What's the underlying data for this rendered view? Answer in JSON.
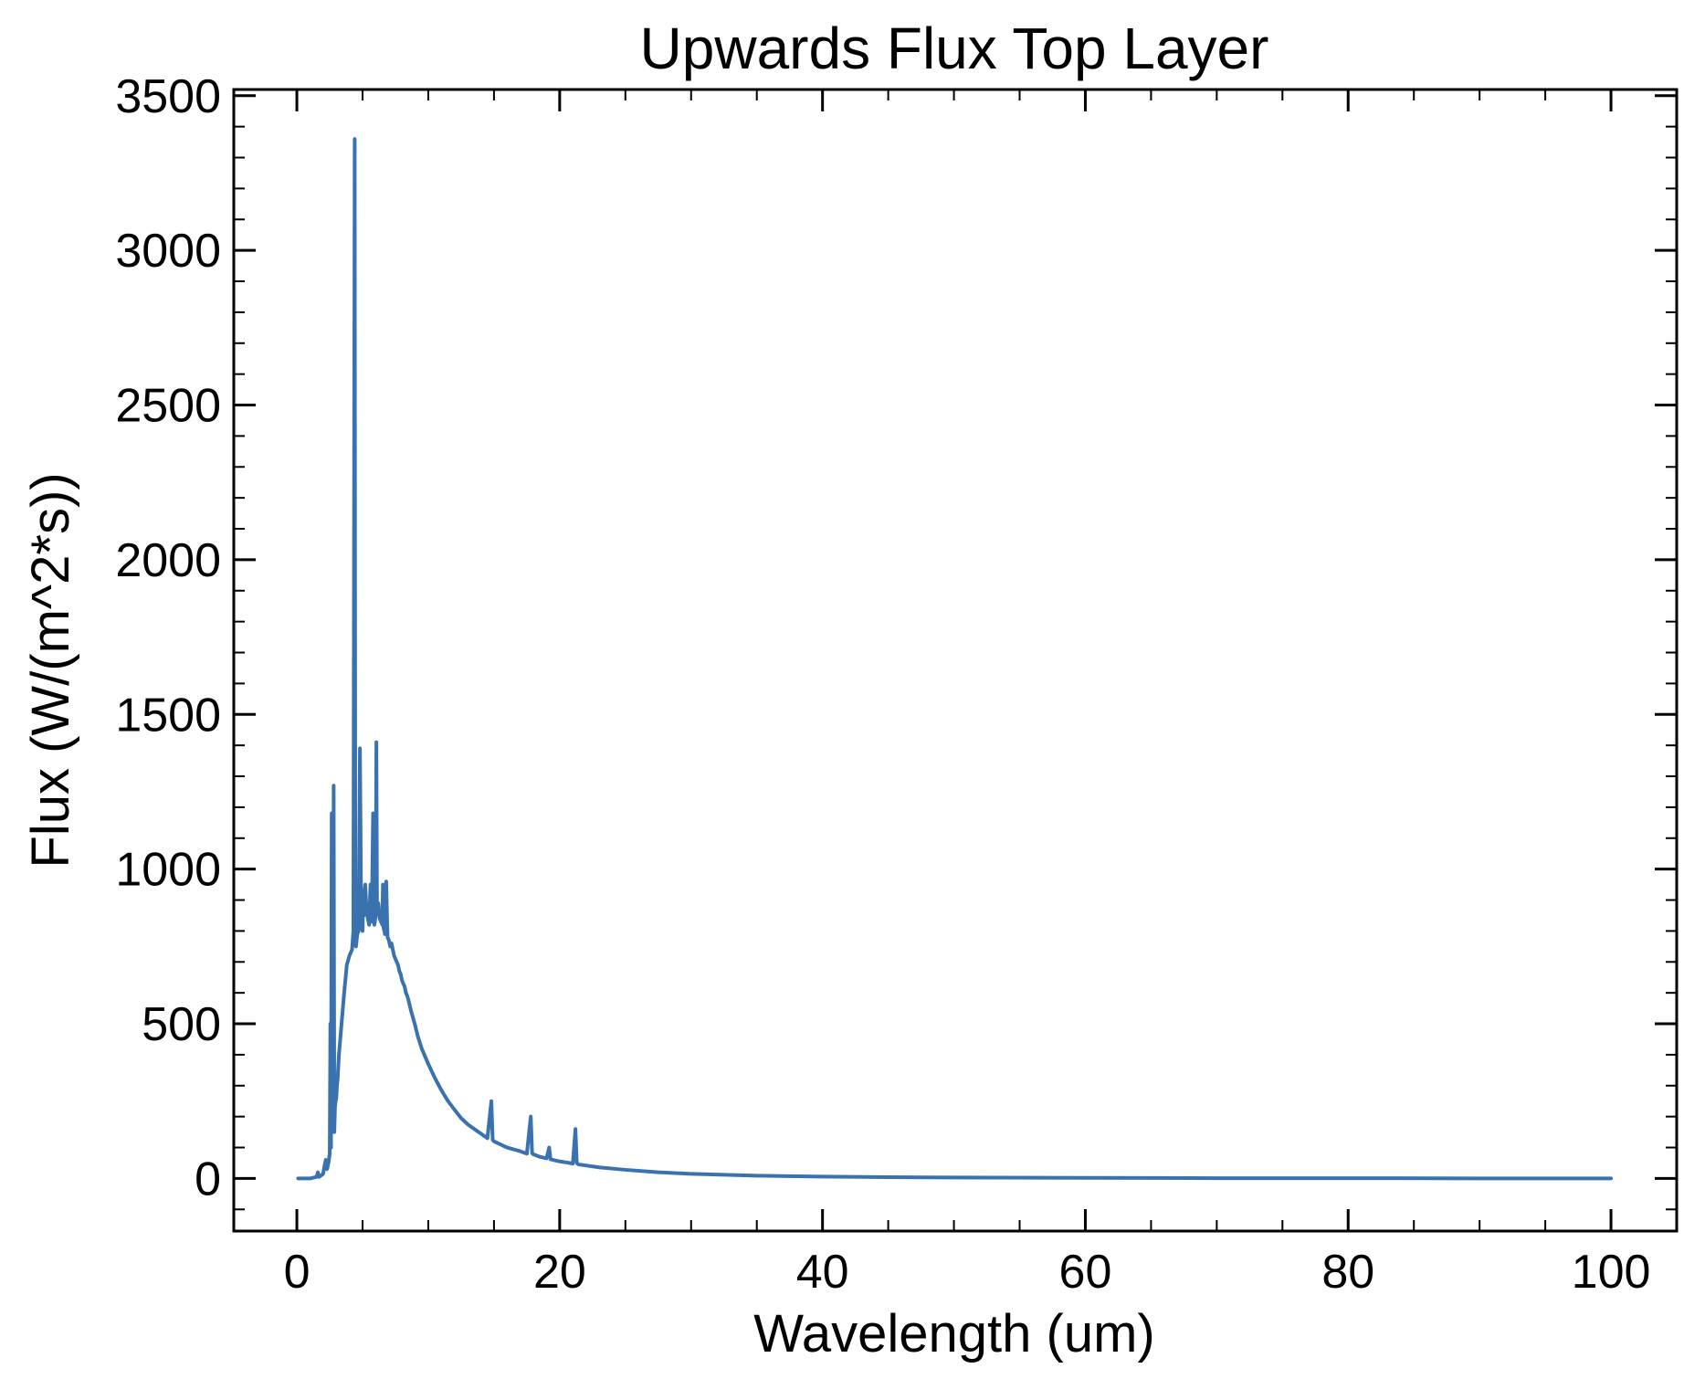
{
  "chart_data": {
    "type": "line",
    "title": "Upwards Flux Top Layer",
    "xlabel": "Wavelength (um)",
    "ylabel": "Flux (W/(m^2*s))",
    "xlim": [
      -4.8,
      105
    ],
    "ylim": [
      -170,
      3520
    ],
    "x_major_ticks": [
      0,
      20,
      40,
      60,
      80,
      100
    ],
    "x_tick_labels": [
      "0",
      "20",
      "40",
      "60",
      "80",
      "100"
    ],
    "x_minor_step": 5,
    "y_major_ticks": [
      0,
      500,
      1000,
      1500,
      2000,
      2500,
      3000,
      3500
    ],
    "y_tick_labels": [
      "0",
      "500",
      "1000",
      "1500",
      "2000",
      "2500",
      "3000",
      "3500"
    ],
    "y_minor_step": 100,
    "grid": false,
    "series": [
      {
        "name": "Upwards Flux",
        "color": "#3a72b0",
        "x": [
          0.1,
          1.0,
          1.5,
          1.6,
          1.7,
          2.0,
          2.1,
          2.2,
          2.3,
          2.4,
          2.5,
          2.55,
          2.6,
          2.65,
          2.7,
          2.75,
          2.8,
          2.85,
          2.9,
          2.95,
          3.0,
          3.05,
          3.1,
          3.2,
          3.4,
          3.6,
          3.8,
          4.0,
          4.2,
          4.3,
          4.4,
          4.45,
          4.5,
          4.55,
          4.6,
          4.7,
          4.8,
          4.9,
          5.0,
          5.05,
          5.1,
          5.15,
          5.2,
          5.3,
          5.4,
          5.5,
          5.6,
          5.7,
          5.8,
          5.9,
          6.0,
          6.05,
          6.1,
          6.2,
          6.3,
          6.4,
          6.5,
          6.55,
          6.6,
          6.7,
          6.8,
          6.9,
          7.0,
          7.1,
          7.2,
          7.3,
          7.4,
          7.5,
          7.6,
          7.7,
          7.8,
          7.9,
          8.0,
          8.1,
          8.2,
          8.3,
          8.4,
          8.5,
          8.7,
          8.9,
          9.0,
          9.2,
          9.5,
          10.0,
          10.5,
          11.0,
          11.5,
          12.0,
          12.5,
          13.0,
          13.5,
          14.0,
          14.5,
          14.8,
          14.9,
          15.0,
          15.5,
          16.0,
          17.0,
          17.5,
          17.8,
          17.9,
          18.0,
          18.5,
          19.0,
          19.2,
          19.3,
          19.5,
          20.0,
          20.5,
          21.0,
          21.2,
          21.3,
          21.4,
          21.5,
          22.0,
          23.0,
          25.0,
          27.5,
          30.0,
          35.0,
          40.0,
          45.0,
          50.0,
          60.0,
          70.0,
          80.0,
          90.0,
          100.0
        ],
        "values": [
          0,
          0,
          5,
          20,
          5,
          15,
          40,
          60,
          30,
          50,
          80,
          500,
          100,
          1180,
          150,
          200,
          1270,
          150,
          230,
          250,
          260,
          300,
          320,
          400,
          500,
          600,
          690,
          720,
          740,
          800,
          3360,
          780,
          750,
          770,
          790,
          800,
          1390,
          820,
          800,
          900,
          850,
          930,
          950,
          870,
          840,
          820,
          950,
          830,
          1180,
          820,
          850,
          1410,
          860,
          890,
          840,
          830,
          820,
          950,
          810,
          790,
          960,
          780,
          770,
          750,
          760,
          740,
          720,
          710,
          700,
          690,
          670,
          660,
          640,
          630,
          620,
          600,
          590,
          575,
          540,
          510,
          495,
          460,
          420,
          370,
          325,
          285,
          250,
          222,
          195,
          175,
          160,
          145,
          130,
          250,
          125,
          120,
          110,
          100,
          88,
          80,
          200,
          82,
          78,
          70,
          65,
          100,
          62,
          60,
          55,
          52,
          48,
          160,
          50,
          46,
          45,
          42,
          36,
          28,
          20,
          15,
          9,
          6,
          4,
          3,
          2,
          1,
          1,
          0,
          0
        ]
      }
    ]
  }
}
